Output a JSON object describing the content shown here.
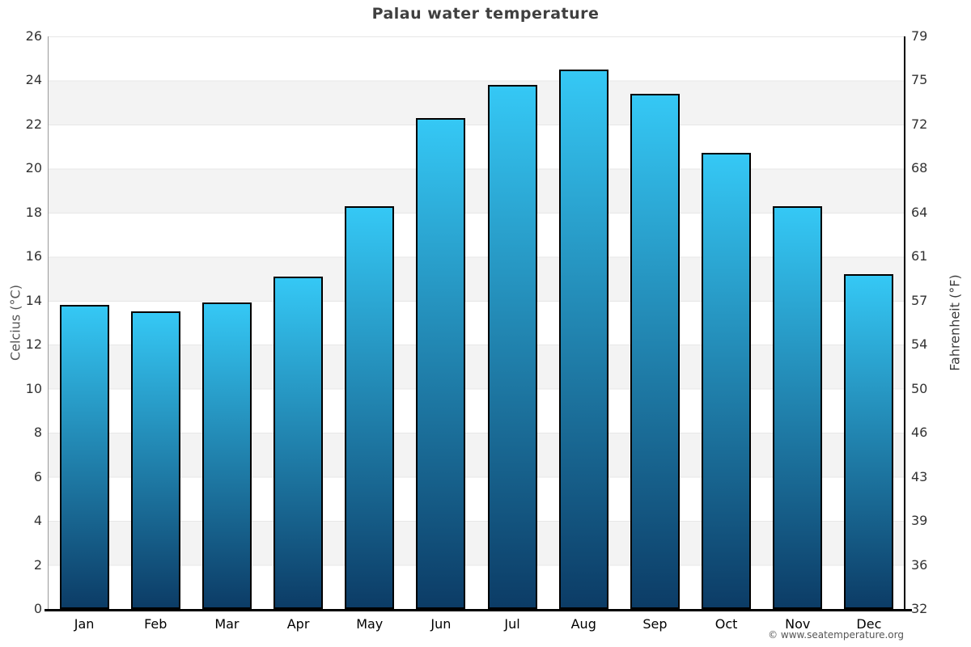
{
  "page": {
    "title": "Palau water temperature",
    "copyright": "© www.seatemperature.org"
  },
  "chart_data": {
    "type": "bar",
    "title": "Palau water temperature",
    "categories": [
      "Jan",
      "Feb",
      "Mar",
      "Apr",
      "May",
      "Jun",
      "Jul",
      "Aug",
      "Sep",
      "Oct",
      "Nov",
      "Dec"
    ],
    "values": [
      13.8,
      13.5,
      13.9,
      15.1,
      18.3,
      22.3,
      23.8,
      24.5,
      23.4,
      20.7,
      18.3,
      15.2
    ],
    "unit": "°C",
    "ylabel_left": "Celcius (°C)",
    "ylabel_right": "Fahrenheit (°F)",
    "ylim_celsius": [
      0,
      26
    ],
    "yticks_celsius": [
      26,
      24,
      22,
      20,
      18,
      16,
      14,
      12,
      10,
      8,
      6,
      4,
      2,
      0
    ],
    "yticks_fahrenheit": [
      79,
      75,
      72,
      68,
      64,
      61,
      57,
      54,
      50,
      46,
      43,
      39,
      36,
      32
    ],
    "xlabel": "",
    "legend": "none",
    "grid": "alternating horizontal bands",
    "band_color": "#f3f3f3",
    "band_alt_color": "#ffffff",
    "gridline_color": "#e7e7e7",
    "bar_color_top": "#35c8f5",
    "bar_color_bottom": "#0c3c66",
    "bar_border_color": "#000000"
  }
}
